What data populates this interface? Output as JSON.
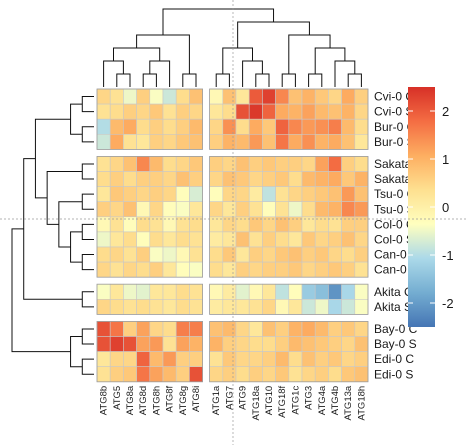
{
  "chart_data": {
    "type": "heatmap",
    "rows": [
      "Cvi-0 C",
      "Cvi-0 S",
      "Bur-0 C",
      "Bur-0 S",
      "Sakata C",
      "Sakata S",
      "Tsu-0 C",
      "Tsu-0 S",
      "Col-0 C",
      "Col-0 S",
      "Can-0 C",
      "Can-0 S",
      "Akita C",
      "Akita S",
      "Bay-0 C",
      "Bay-0 S",
      "Edi-0 C",
      "Edi-0 S"
    ],
    "columns": [
      "ATG8b",
      "ATG5",
      "ATG8a",
      "ATG8d",
      "ATG8h",
      "ATG8f",
      "ATG8g",
      "ATG8i",
      "ATG1a",
      "ATG7",
      "ATG9",
      "ATG18a",
      "ATG10",
      "ATG18f",
      "ATG1c",
      "ATG3",
      "ATG4a",
      "ATG4b",
      "ATG13a",
      "ATG18h"
    ],
    "row_groups": [
      4,
      8,
      2,
      4
    ],
    "column_groups": [
      8,
      12
    ],
    "values": [
      [
        0.5,
        0.3,
        -0.5,
        0.6,
        -0.4,
        -0.8,
        0.4,
        0.8,
        -0.2,
        0.8,
        0.2,
        2.0,
        2.3,
        1.5,
        0.8,
        1.0,
        0.7,
        0.5,
        1.1,
        0.6
      ],
      [
        0.3,
        0.4,
        0.6,
        0.5,
        0.7,
        0.3,
        0.6,
        0.5,
        0.2,
        0.4,
        2.1,
        2.4,
        1.9,
        1.1,
        1.0,
        1.2,
        0.9,
        0.8,
        1.0,
        0.5
      ],
      [
        -1.0,
        0.9,
        1.1,
        0.4,
        0.6,
        0.4,
        0.6,
        0.9,
        0.5,
        1.4,
        0.4,
        1.1,
        0.7,
        1.9,
        1.5,
        1.3,
        1.4,
        1.6,
        0.9,
        0.4
      ],
      [
        -0.8,
        1.1,
        0.3,
        0.2,
        0.6,
        0.5,
        0.7,
        0.8,
        0.6,
        1.0,
        0.9,
        1.3,
        0.8,
        1.7,
        1.1,
        1.4,
        1.0,
        1.1,
        0.8,
        0.2
      ],
      [
        0.3,
        0.5,
        0.8,
        1.5,
        0.9,
        0.4,
        0.5,
        0.7,
        0.6,
        0.5,
        0.8,
        0.6,
        0.7,
        0.6,
        0.6,
        0.5,
        1.2,
        1.8,
        0.6,
        0.4
      ],
      [
        0.4,
        0.6,
        0.4,
        0.6,
        0.6,
        0.5,
        0.8,
        0.6,
        0.5,
        0.8,
        0.7,
        0.5,
        0.6,
        0.7,
        0.4,
        0.9,
        1.0,
        1.1,
        0.7,
        1.0
      ],
      [
        0.2,
        0.7,
        0.6,
        0.5,
        0.6,
        0.5,
        -0.3,
        -0.7,
        -0.3,
        0.5,
        0.5,
        0.1,
        -0.9,
        0.3,
        0.5,
        0.6,
        0.7,
        0.8,
        1.3,
        0.8
      ],
      [
        0.6,
        0.5,
        0.8,
        -0.2,
        0.5,
        -0.3,
        -0.4,
        0.2,
        0.5,
        0.2,
        0.6,
        0.3,
        -0.3,
        0.3,
        -0.5,
        0.4,
        0.9,
        1.0,
        1.5,
        1.3
      ],
      [
        -0.2,
        0.3,
        -0.3,
        0.4,
        0.3,
        -0.2,
        0.3,
        0.4,
        0.2,
        0.5,
        0.4,
        0.7,
        0.5,
        0.8,
        0.6,
        0.2,
        0.4,
        0.3,
        0.6,
        0.6
      ],
      [
        -0.5,
        0.2,
        0.4,
        -0.3,
        0.4,
        0.2,
        0.4,
        0.3,
        0.1,
        0.2,
        0.8,
        0.3,
        0.6,
        0.4,
        0.2,
        0.7,
        0.5,
        0.6,
        0.8,
        0.5
      ],
      [
        0.4,
        0.5,
        0.3,
        0.6,
        -0.4,
        -0.5,
        -0.2,
        0.3,
        0.4,
        0.7,
        0.2,
        0.6,
        0.5,
        0.7,
        0.8,
        0.6,
        0.7,
        0.5,
        0.4,
        0.6
      ],
      [
        0.5,
        0.3,
        0.5,
        0.4,
        0.6,
        0.2,
        -0.3,
        -0.4,
        0.4,
        0.2,
        0.6,
        0.5,
        0.6,
        0.6,
        0.7,
        0.5,
        0.6,
        0.7,
        0.6,
        0.3
      ],
      [
        -0.4,
        0.2,
        -0.5,
        -0.6,
        0.2,
        0.2,
        0.4,
        0.3,
        -0.2,
        0.1,
        -0.6,
        -0.2,
        0.2,
        -0.9,
        -0.3,
        -1.3,
        -1.5,
        -2.1,
        -1.1,
        -0.4
      ],
      [
        0.5,
        0.4,
        0.3,
        0.4,
        0.3,
        0.2,
        0.4,
        0.3,
        0.1,
        0.2,
        0.2,
        0.3,
        0.5,
        -0.2,
        0.2,
        -0.8,
        -0.5,
        -1.1,
        -0.8,
        -0.4
      ],
      [
        2.1,
        1.7,
        0.6,
        1.2,
        0.5,
        0.4,
        1.6,
        1.6,
        0.8,
        0.9,
        0.5,
        0.2,
        0.8,
        0.6,
        1.0,
        1.1,
        0.9,
        0.6,
        0.7,
        0.5
      ],
      [
        2.1,
        2.3,
        2.1,
        1.2,
        1.3,
        0.3,
        1.2,
        1.0,
        1.0,
        0.6,
        0.5,
        0.4,
        0.4,
        0.6,
        0.9,
        0.8,
        0.7,
        0.6,
        0.5,
        0.8
      ],
      [
        0.2,
        0.5,
        0.5,
        1.9,
        0.9,
        1.3,
        0.6,
        0.6,
        0.3,
        0.7,
        0.5,
        0.5,
        0.6,
        0.9,
        0.4,
        0.8,
        0.6,
        0.7,
        0.5,
        0.6
      ],
      [
        0.3,
        0.6,
        0.7,
        1.7,
        1.2,
        0.9,
        0.6,
        2.1,
        0.5,
        0.6,
        0.4,
        0.6,
        0.5,
        0.7,
        0.3,
        0.5,
        0.6,
        0.4,
        0.7,
        0.8
      ]
    ],
    "color_scale": {
      "min": -2.5,
      "max": 2.5,
      "colors": [
        "#4575b4",
        "#74add1",
        "#abd9e9",
        "#ffffbf",
        "#fee090",
        "#fdae61",
        "#f46d43",
        "#d73027"
      ]
    },
    "legend_ticks": [
      2,
      1,
      0,
      -1,
      -2
    ],
    "legend_tick_labels": [
      "2",
      "1",
      "0",
      "-1",
      "-2"
    ],
    "legend_placement": "right",
    "title": "",
    "xlabel": "",
    "ylabel": ""
  }
}
